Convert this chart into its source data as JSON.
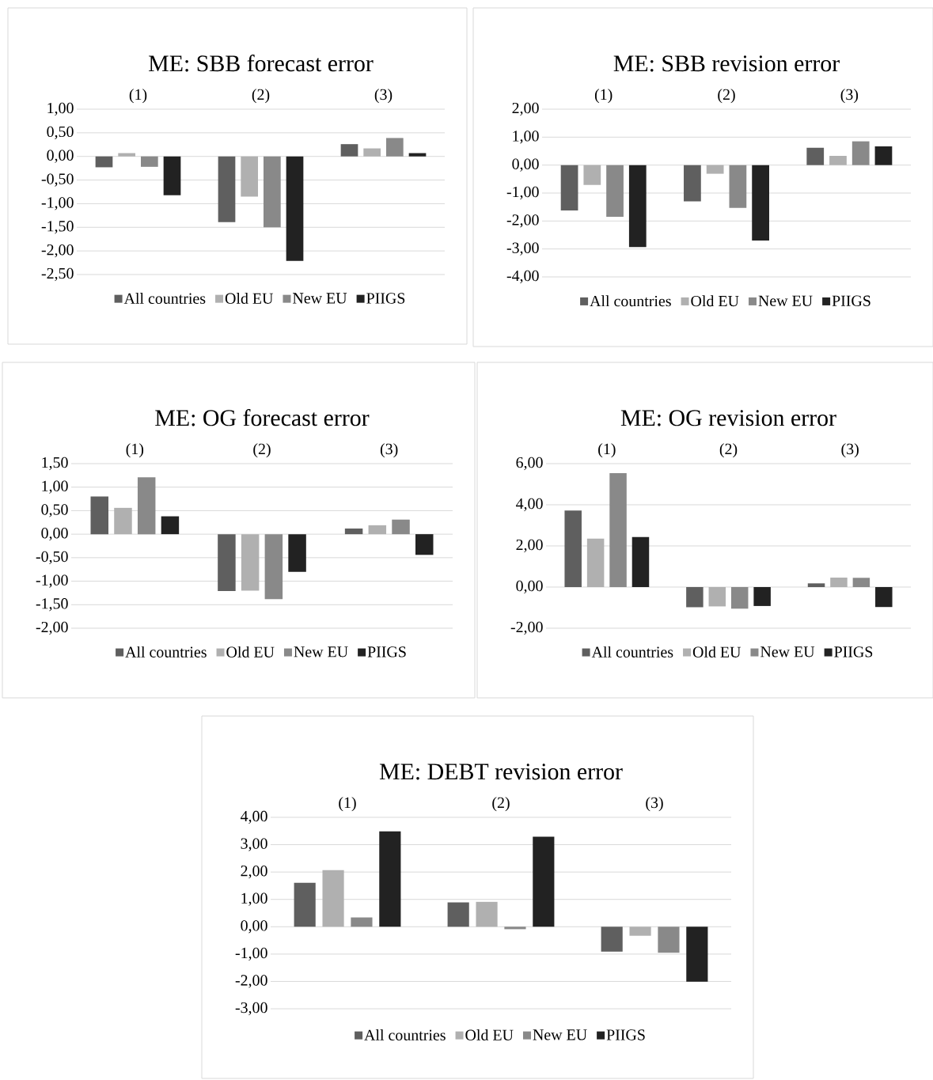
{
  "chart_data": [
    {
      "type": "bar",
      "title": "ME: SBB forecast error",
      "categories": [
        "(1)",
        "(2)",
        "(3)"
      ],
      "series": [
        {
          "name": "All countries",
          "color": "#5f5f5f",
          "values": [
            -0.23,
            -1.39,
            0.26
          ]
        },
        {
          "name": "Old EU",
          "color": "#b0b0b0",
          "values": [
            0.07,
            -0.85,
            0.17
          ]
        },
        {
          "name": "New EU",
          "color": "#898989",
          "values": [
            -0.22,
            -1.5,
            0.39
          ]
        },
        {
          "name": "PIIGS",
          "color": "#222222",
          "values": [
            -0.82,
            -2.21,
            0.07
          ]
        }
      ],
      "ylim": [
        -2.5,
        1
      ],
      "yticks": [
        {
          "value": -2.5,
          "label": "-2,50"
        },
        {
          "value": -2,
          "label": "-2,00"
        },
        {
          "value": -1.5,
          "label": "-1,50"
        },
        {
          "value": -1,
          "label": "-1,00"
        },
        {
          "value": -0.5,
          "label": "-0,50"
        },
        {
          "value": 0,
          "label": "0,00"
        },
        {
          "value": 0.5,
          "label": "0,50"
        },
        {
          "value": 1,
          "label": "1,00"
        }
      ],
      "grid": "y",
      "legend": "bottom"
    },
    {
      "type": "bar",
      "title": "ME: SBB revision error",
      "categories": [
        "(1)",
        "(2)",
        "(3)"
      ],
      "series": [
        {
          "name": "All countries",
          "color": "#5f5f5f",
          "values": [
            -1.62,
            -1.3,
            0.62
          ]
        },
        {
          "name": "Old EU",
          "color": "#b0b0b0",
          "values": [
            -0.71,
            -0.31,
            0.33
          ]
        },
        {
          "name": "New EU",
          "color": "#898989",
          "values": [
            -1.85,
            -1.53,
            0.85
          ]
        },
        {
          "name": "PIIGS",
          "color": "#222222",
          "values": [
            -2.93,
            -2.7,
            0.67
          ]
        }
      ],
      "ylim": [
        -4,
        2
      ],
      "yticks": [
        {
          "value": -4,
          "label": "-4,00"
        },
        {
          "value": -3,
          "label": "-3,00"
        },
        {
          "value": -2,
          "label": "-2,00"
        },
        {
          "value": -1,
          "label": "-1,00"
        },
        {
          "value": 0,
          "label": "0,00"
        },
        {
          "value": 1,
          "label": "1,00"
        },
        {
          "value": 2,
          "label": "2,00"
        }
      ],
      "grid": "y",
      "legend": "bottom"
    },
    {
      "type": "bar",
      "title": "ME: OG forecast error",
      "categories": [
        "(1)",
        "(2)",
        "(3)"
      ],
      "series": [
        {
          "name": "All countries",
          "color": "#5f5f5f",
          "values": [
            0.8,
            -1.21,
            0.12
          ]
        },
        {
          "name": "Old EU",
          "color": "#b0b0b0",
          "values": [
            0.56,
            -1.2,
            0.19
          ]
        },
        {
          "name": "New EU",
          "color": "#898989",
          "values": [
            1.21,
            -1.38,
            0.31
          ]
        },
        {
          "name": "PIIGS",
          "color": "#222222",
          "values": [
            0.38,
            -0.8,
            -0.44
          ]
        }
      ],
      "ylim": [
        -2,
        1.5
      ],
      "yticks": [
        {
          "value": -2,
          "label": "-2,00"
        },
        {
          "value": -1.5,
          "label": "-1,50"
        },
        {
          "value": -1,
          "label": "-1,00"
        },
        {
          "value": -0.5,
          "label": "-0,50"
        },
        {
          "value": 0,
          "label": "0,00"
        },
        {
          "value": 0.5,
          "label": "0,50"
        },
        {
          "value": 1,
          "label": "1,00"
        },
        {
          "value": 1.5,
          "label": "1,50"
        }
      ],
      "grid": "y",
      "legend": "bottom"
    },
    {
      "type": "bar",
      "title": "ME: OG revision error",
      "categories": [
        "(1)",
        "(2)",
        "(3)"
      ],
      "series": [
        {
          "name": "All countries",
          "color": "#5f5f5f",
          "values": [
            3.72,
            -0.98,
            0.18
          ]
        },
        {
          "name": "Old EU",
          "color": "#b0b0b0",
          "values": [
            2.36,
            -0.94,
            0.46
          ]
        },
        {
          "name": "New EU",
          "color": "#898989",
          "values": [
            5.54,
            -1.05,
            0.45
          ]
        },
        {
          "name": "PIIGS",
          "color": "#222222",
          "values": [
            2.43,
            -0.92,
            -0.97
          ]
        }
      ],
      "ylim": [
        -2,
        6
      ],
      "yticks": [
        {
          "value": -2,
          "label": "-2,00"
        },
        {
          "value": 0,
          "label": "0,00"
        },
        {
          "value": 2,
          "label": "2,00"
        },
        {
          "value": 4,
          "label": "4,00"
        },
        {
          "value": 6,
          "label": "6,00"
        }
      ],
      "grid": "y",
      "legend": "bottom"
    },
    {
      "type": "bar",
      "title": "ME: DEBT revision error",
      "categories": [
        "(1)",
        "(2)",
        "(3)"
      ],
      "series": [
        {
          "name": "All countries",
          "color": "#5f5f5f",
          "values": [
            1.61,
            0.89,
            -0.91
          ]
        },
        {
          "name": "Old EU",
          "color": "#b0b0b0",
          "values": [
            2.07,
            0.91,
            -0.33
          ]
        },
        {
          "name": "New EU",
          "color": "#898989",
          "values": [
            0.34,
            -0.09,
            -0.95
          ]
        },
        {
          "name": "PIIGS",
          "color": "#222222",
          "values": [
            3.49,
            3.29,
            -2.01
          ]
        }
      ],
      "ylim": [
        -3,
        4
      ],
      "yticks": [
        {
          "value": -3,
          "label": "-3,00"
        },
        {
          "value": -2,
          "label": "-2,00"
        },
        {
          "value": -1,
          "label": "-1,00"
        },
        {
          "value": 0,
          "label": "0,00"
        },
        {
          "value": 1,
          "label": "1,00"
        },
        {
          "value": 2,
          "label": "2,00"
        },
        {
          "value": 3,
          "label": "3,00"
        },
        {
          "value": 4,
          "label": "4,00"
        }
      ],
      "grid": "y",
      "legend": "bottom"
    }
  ]
}
